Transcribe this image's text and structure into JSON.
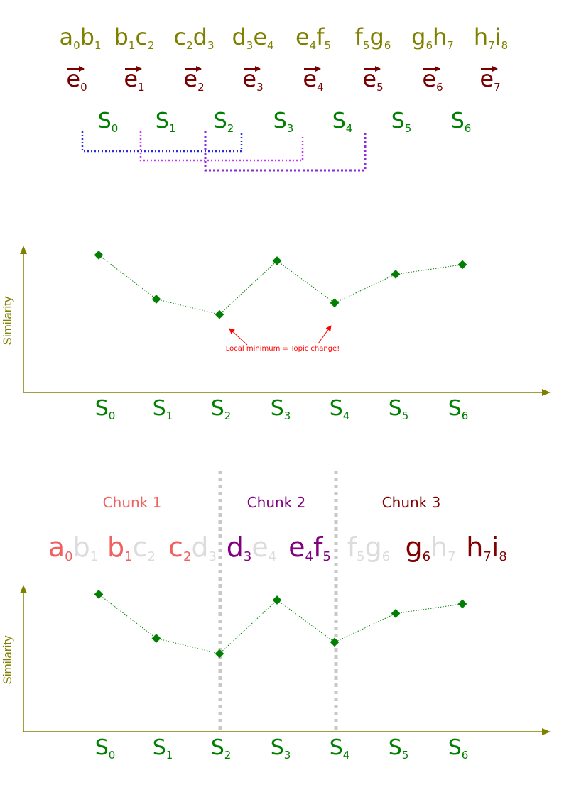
{
  "pairs": [
    {
      "a": "a",
      "ai": "0",
      "b": "b",
      "bi": "1"
    },
    {
      "a": "b",
      "ai": "1",
      "b": "c",
      "bi": "2"
    },
    {
      "a": "c",
      "ai": "2",
      "b": "d",
      "bi": "3"
    },
    {
      "a": "d",
      "ai": "3",
      "b": "e",
      "bi": "4"
    },
    {
      "a": "e",
      "ai": "4",
      "b": "f",
      "bi": "5"
    },
    {
      "a": "f",
      "ai": "5",
      "b": "g",
      "bi": "6"
    },
    {
      "a": "g",
      "ai": "6",
      "b": "h",
      "bi": "7"
    },
    {
      "a": "h",
      "ai": "7",
      "b": "i",
      "bi": "8"
    }
  ],
  "embeddings": {
    "letter": "e",
    "subs": [
      "0",
      "1",
      "2",
      "3",
      "4",
      "5",
      "6",
      "7"
    ]
  },
  "sims": {
    "letter": "S",
    "subs": [
      "0",
      "1",
      "2",
      "3",
      "4",
      "5",
      "6"
    ]
  },
  "colors": {
    "olive": "#808000",
    "maroon": "#7a0000",
    "green": "#008000",
    "blue": "#2a2ae0",
    "magenta": "#cc33ff",
    "purple": "#8a2be2",
    "red": "#ff0000",
    "chunk1": "#f06060",
    "chunk2": "#800080",
    "chunk3": "#800000",
    "faded": "#dcdcdc",
    "divider": "#c8c8c8"
  },
  "chart1": {
    "ylabel": "Similarity",
    "annotation": "Local minimum = Topic change!"
  },
  "chart2": {
    "ylabel": "Similarity"
  },
  "chunks": [
    {
      "label": "Chunk 1",
      "color_key": "chunk1"
    },
    {
      "label": "Chunk 2",
      "color_key": "chunk2"
    },
    {
      "label": "Chunk 3",
      "color_key": "chunk3"
    }
  ],
  "chunked_pairs": [
    {
      "a": "a",
      "ai": "0",
      "b": "b",
      "bi": "1",
      "a_col": "chunk1",
      "b_col": "faded"
    },
    {
      "a": "b",
      "ai": "1",
      "b": "c",
      "bi": "2",
      "a_col": "chunk1",
      "b_col": "faded"
    },
    {
      "a": "c",
      "ai": "2",
      "b": "d",
      "bi": "3",
      "a_col": "chunk1",
      "b_col": "faded"
    },
    {
      "a": "d",
      "ai": "3",
      "b": "e",
      "bi": "4",
      "a_col": "chunk2",
      "b_col": "faded"
    },
    {
      "a": "e",
      "ai": "4",
      "b": "f",
      "bi": "5",
      "a_col": "chunk2",
      "b_col": "chunk2"
    },
    {
      "a": "f",
      "ai": "5",
      "b": "g",
      "bi": "6",
      "a_col": "faded",
      "b_col": "faded"
    },
    {
      "a": "g",
      "ai": "6",
      "b": "h",
      "bi": "7",
      "a_col": "chunk3",
      "b_col": "faded"
    },
    {
      "a": "h",
      "ai": "7",
      "b": "i",
      "bi": "8",
      "a_col": "chunk3",
      "b_col": "chunk3"
    }
  ],
  "chart_data": [
    {
      "type": "line",
      "title": "",
      "xlabel": "",
      "ylabel": "Similarity",
      "categories": [
        "S0",
        "S1",
        "S2",
        "S3",
        "S4",
        "S5",
        "S6"
      ],
      "values": [
        0.78,
        0.55,
        0.47,
        0.75,
        0.53,
        0.68,
        0.73
      ],
      "annotations": [
        {
          "text": "Local minimum = Topic change!",
          "targets": [
            "S2",
            "S4"
          ]
        }
      ]
    },
    {
      "type": "line",
      "title": "",
      "xlabel": "",
      "ylabel": "Similarity",
      "categories": [
        "S0",
        "S1",
        "S2",
        "S3",
        "S4",
        "S5",
        "S6"
      ],
      "values": [
        0.78,
        0.55,
        0.47,
        0.75,
        0.53,
        0.68,
        0.73
      ],
      "dividers_after": [
        "S2",
        "S4"
      ]
    }
  ]
}
